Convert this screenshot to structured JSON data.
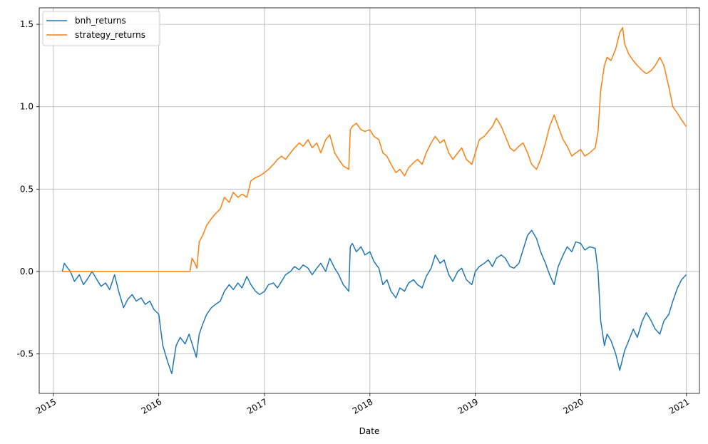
{
  "chart_data": {
    "type": "line",
    "title": "",
    "xlabel": "Date",
    "ylabel": "",
    "xlim": [
      "2014-11-13",
      "2021-02-15"
    ],
    "ylim": [
      -0.74,
      1.6
    ],
    "x_ticks": [
      "2015",
      "2016",
      "2017",
      "2018",
      "2019",
      "2020",
      "2021"
    ],
    "y_ticks": [
      "-0.5",
      "0.0",
      "0.5",
      "1.0",
      "1.5"
    ],
    "grid": true,
    "legend_position": "upper left",
    "series": [
      {
        "name": "bnh_returns",
        "color": "#1f77b4",
        "points": [
          [
            "2015-02-01",
            0.0
          ],
          [
            "2015-02-08",
            0.05
          ],
          [
            "2015-02-20",
            0.02
          ],
          [
            "2015-03-01",
            0.0
          ],
          [
            "2015-03-15",
            -0.06
          ],
          [
            "2015-04-01",
            -0.02
          ],
          [
            "2015-04-15",
            -0.08
          ],
          [
            "2015-05-01",
            -0.04
          ],
          [
            "2015-05-15",
            0.0
          ],
          [
            "2015-06-01",
            -0.05
          ],
          [
            "2015-06-15",
            -0.09
          ],
          [
            "2015-07-01",
            -0.07
          ],
          [
            "2015-07-15",
            -0.11
          ],
          [
            "2015-08-01",
            -0.02
          ],
          [
            "2015-08-15",
            -0.12
          ],
          [
            "2015-09-01",
            -0.22
          ],
          [
            "2015-09-15",
            -0.17
          ],
          [
            "2015-10-01",
            -0.14
          ],
          [
            "2015-10-15",
            -0.18
          ],
          [
            "2015-11-01",
            -0.16
          ],
          [
            "2015-11-15",
            -0.2
          ],
          [
            "2015-12-01",
            -0.18
          ],
          [
            "2015-12-15",
            -0.23
          ],
          [
            "2016-01-01",
            -0.26
          ],
          [
            "2016-01-15",
            -0.45
          ],
          [
            "2016-02-01",
            -0.55
          ],
          [
            "2016-02-15",
            -0.62
          ],
          [
            "2016-03-01",
            -0.45
          ],
          [
            "2016-03-15",
            -0.4
          ],
          [
            "2016-04-01",
            -0.44
          ],
          [
            "2016-04-15",
            -0.38
          ],
          [
            "2016-05-01",
            -0.47
          ],
          [
            "2016-05-10",
            -0.52
          ],
          [
            "2016-05-20",
            -0.38
          ],
          [
            "2016-06-01",
            -0.32
          ],
          [
            "2016-06-15",
            -0.26
          ],
          [
            "2016-07-01",
            -0.22
          ],
          [
            "2016-07-15",
            -0.2
          ],
          [
            "2016-08-01",
            -0.18
          ],
          [
            "2016-08-15",
            -0.12
          ],
          [
            "2016-09-01",
            -0.08
          ],
          [
            "2016-09-15",
            -0.11
          ],
          [
            "2016-10-01",
            -0.07
          ],
          [
            "2016-10-15",
            -0.1
          ],
          [
            "2016-11-01",
            -0.03
          ],
          [
            "2016-11-15",
            -0.08
          ],
          [
            "2016-12-01",
            -0.12
          ],
          [
            "2016-12-15",
            -0.14
          ],
          [
            "2017-01-01",
            -0.12
          ],
          [
            "2017-01-15",
            -0.08
          ],
          [
            "2017-02-01",
            -0.07
          ],
          [
            "2017-02-15",
            -0.1
          ],
          [
            "2017-03-01",
            -0.06
          ],
          [
            "2017-03-15",
            -0.02
          ],
          [
            "2017-04-01",
            0.0
          ],
          [
            "2017-04-15",
            0.03
          ],
          [
            "2017-05-01",
            0.01
          ],
          [
            "2017-05-15",
            0.04
          ],
          [
            "2017-06-01",
            0.02
          ],
          [
            "2017-06-15",
            -0.02
          ],
          [
            "2017-07-01",
            0.02
          ],
          [
            "2017-07-15",
            0.05
          ],
          [
            "2017-08-01",
            0.0
          ],
          [
            "2017-08-15",
            0.08
          ],
          [
            "2017-09-01",
            0.02
          ],
          [
            "2017-09-15",
            -0.02
          ],
          [
            "2017-10-01",
            -0.08
          ],
          [
            "2017-10-20",
            -0.12
          ],
          [
            "2017-10-25",
            0.15
          ],
          [
            "2017-11-01",
            0.17
          ],
          [
            "2017-11-15",
            0.12
          ],
          [
            "2017-12-01",
            0.15
          ],
          [
            "2017-12-15",
            0.1
          ],
          [
            "2018-01-01",
            0.12
          ],
          [
            "2018-01-15",
            0.06
          ],
          [
            "2018-02-01",
            0.02
          ],
          [
            "2018-02-15",
            -0.08
          ],
          [
            "2018-03-01",
            -0.05
          ],
          [
            "2018-03-15",
            -0.12
          ],
          [
            "2018-04-01",
            -0.16
          ],
          [
            "2018-04-15",
            -0.1
          ],
          [
            "2018-05-01",
            -0.12
          ],
          [
            "2018-05-15",
            -0.07
          ],
          [
            "2018-06-01",
            -0.05
          ],
          [
            "2018-06-15",
            -0.08
          ],
          [
            "2018-07-01",
            -0.1
          ],
          [
            "2018-07-15",
            -0.03
          ],
          [
            "2018-08-01",
            0.02
          ],
          [
            "2018-08-15",
            0.1
          ],
          [
            "2018-09-01",
            0.05
          ],
          [
            "2018-09-15",
            0.07
          ],
          [
            "2018-10-01",
            -0.02
          ],
          [
            "2018-10-15",
            -0.06
          ],
          [
            "2018-11-01",
            0.0
          ],
          [
            "2018-11-15",
            0.02
          ],
          [
            "2018-12-01",
            -0.05
          ],
          [
            "2018-12-20",
            -0.08
          ],
          [
            "2019-01-01",
            0.0
          ],
          [
            "2019-01-15",
            0.03
          ],
          [
            "2019-02-01",
            0.05
          ],
          [
            "2019-02-15",
            0.07
          ],
          [
            "2019-03-01",
            0.03
          ],
          [
            "2019-03-15",
            0.08
          ],
          [
            "2019-04-01",
            0.1
          ],
          [
            "2019-04-15",
            0.08
          ],
          [
            "2019-05-01",
            0.03
          ],
          [
            "2019-05-15",
            0.02
          ],
          [
            "2019-06-01",
            0.05
          ],
          [
            "2019-06-15",
            0.13
          ],
          [
            "2019-07-01",
            0.22
          ],
          [
            "2019-07-15",
            0.25
          ],
          [
            "2019-08-01",
            0.2
          ],
          [
            "2019-08-15",
            0.12
          ],
          [
            "2019-09-01",
            0.05
          ],
          [
            "2019-09-15",
            -0.02
          ],
          [
            "2019-10-01",
            -0.08
          ],
          [
            "2019-10-15",
            0.03
          ],
          [
            "2019-11-01",
            0.1
          ],
          [
            "2019-11-15",
            0.15
          ],
          [
            "2019-12-01",
            0.12
          ],
          [
            "2019-12-15",
            0.18
          ],
          [
            "2020-01-01",
            0.17
          ],
          [
            "2020-01-15",
            0.13
          ],
          [
            "2020-02-01",
            0.15
          ],
          [
            "2020-02-20",
            0.14
          ],
          [
            "2020-03-01",
            0.0
          ],
          [
            "2020-03-10",
            -0.3
          ],
          [
            "2020-03-23",
            -0.45
          ],
          [
            "2020-04-01",
            -0.38
          ],
          [
            "2020-04-15",
            -0.42
          ],
          [
            "2020-05-01",
            -0.5
          ],
          [
            "2020-05-15",
            -0.6
          ],
          [
            "2020-06-01",
            -0.48
          ],
          [
            "2020-06-15",
            -0.42
          ],
          [
            "2020-07-01",
            -0.35
          ],
          [
            "2020-07-15",
            -0.4
          ],
          [
            "2020-08-01",
            -0.3
          ],
          [
            "2020-08-15",
            -0.25
          ],
          [
            "2020-09-01",
            -0.3
          ],
          [
            "2020-09-15",
            -0.35
          ],
          [
            "2020-10-01",
            -0.38
          ],
          [
            "2020-10-15",
            -0.3
          ],
          [
            "2020-11-01",
            -0.26
          ],
          [
            "2020-11-15",
            -0.18
          ],
          [
            "2020-12-01",
            -0.1
          ],
          [
            "2020-12-15",
            -0.05
          ],
          [
            "2020-12-31",
            -0.02
          ]
        ]
      },
      {
        "name": "strategy_returns",
        "color": "#ff7f0e",
        "points": [
          [
            "2015-02-01",
            0.0
          ],
          [
            "2016-04-18",
            0.0
          ],
          [
            "2016-04-25",
            0.08
          ],
          [
            "2016-05-05",
            0.05
          ],
          [
            "2016-05-12",
            0.02
          ],
          [
            "2016-05-20",
            0.18
          ],
          [
            "2016-06-01",
            0.22
          ],
          [
            "2016-06-15",
            0.28
          ],
          [
            "2016-07-01",
            0.32
          ],
          [
            "2016-07-15",
            0.35
          ],
          [
            "2016-08-01",
            0.38
          ],
          [
            "2016-08-15",
            0.45
          ],
          [
            "2016-09-01",
            0.42
          ],
          [
            "2016-09-15",
            0.48
          ],
          [
            "2016-10-01",
            0.45
          ],
          [
            "2016-10-15",
            0.47
          ],
          [
            "2016-11-01",
            0.45
          ],
          [
            "2016-11-15",
            0.55
          ],
          [
            "2016-12-01",
            0.57
          ],
          [
            "2016-12-15",
            0.58
          ],
          [
            "2017-01-01",
            0.6
          ],
          [
            "2017-01-15",
            0.62
          ],
          [
            "2017-02-01",
            0.65
          ],
          [
            "2017-02-15",
            0.68
          ],
          [
            "2017-03-01",
            0.7
          ],
          [
            "2017-03-15",
            0.68
          ],
          [
            "2017-04-01",
            0.72
          ],
          [
            "2017-04-15",
            0.75
          ],
          [
            "2017-05-01",
            0.78
          ],
          [
            "2017-05-15",
            0.76
          ],
          [
            "2017-06-01",
            0.8
          ],
          [
            "2017-06-15",
            0.75
          ],
          [
            "2017-07-01",
            0.78
          ],
          [
            "2017-07-15",
            0.72
          ],
          [
            "2017-08-01",
            0.8
          ],
          [
            "2017-08-15",
            0.83
          ],
          [
            "2017-09-01",
            0.72
          ],
          [
            "2017-09-15",
            0.68
          ],
          [
            "2017-10-01",
            0.64
          ],
          [
            "2017-10-20",
            0.62
          ],
          [
            "2017-10-25",
            0.86
          ],
          [
            "2017-11-01",
            0.88
          ],
          [
            "2017-11-15",
            0.9
          ],
          [
            "2017-12-01",
            0.86
          ],
          [
            "2017-12-15",
            0.85
          ],
          [
            "2018-01-01",
            0.86
          ],
          [
            "2018-01-15",
            0.82
          ],
          [
            "2018-02-01",
            0.8
          ],
          [
            "2018-02-15",
            0.72
          ],
          [
            "2018-03-01",
            0.7
          ],
          [
            "2018-03-15",
            0.65
          ],
          [
            "2018-04-01",
            0.6
          ],
          [
            "2018-04-15",
            0.62
          ],
          [
            "2018-05-01",
            0.58
          ],
          [
            "2018-05-15",
            0.63
          ],
          [
            "2018-06-01",
            0.66
          ],
          [
            "2018-06-15",
            0.68
          ],
          [
            "2018-07-01",
            0.65
          ],
          [
            "2018-07-15",
            0.72
          ],
          [
            "2018-08-01",
            0.78
          ],
          [
            "2018-08-15",
            0.82
          ],
          [
            "2018-09-01",
            0.78
          ],
          [
            "2018-09-15",
            0.8
          ],
          [
            "2018-10-01",
            0.72
          ],
          [
            "2018-10-15",
            0.68
          ],
          [
            "2018-11-01",
            0.72
          ],
          [
            "2018-11-15",
            0.75
          ],
          [
            "2018-12-01",
            0.68
          ],
          [
            "2018-12-20",
            0.65
          ],
          [
            "2019-01-01",
            0.72
          ],
          [
            "2019-01-15",
            0.8
          ],
          [
            "2019-02-01",
            0.82
          ],
          [
            "2019-02-15",
            0.85
          ],
          [
            "2019-03-01",
            0.88
          ],
          [
            "2019-03-15",
            0.93
          ],
          [
            "2019-04-01",
            0.88
          ],
          [
            "2019-04-15",
            0.82
          ],
          [
            "2019-05-01",
            0.75
          ],
          [
            "2019-05-15",
            0.73
          ],
          [
            "2019-06-01",
            0.76
          ],
          [
            "2019-06-15",
            0.78
          ],
          [
            "2019-07-01",
            0.72
          ],
          [
            "2019-07-15",
            0.65
          ],
          [
            "2019-08-01",
            0.62
          ],
          [
            "2019-08-15",
            0.68
          ],
          [
            "2019-09-01",
            0.78
          ],
          [
            "2019-09-15",
            0.88
          ],
          [
            "2019-10-01",
            0.95
          ],
          [
            "2019-10-15",
            0.88
          ],
          [
            "2019-11-01",
            0.8
          ],
          [
            "2019-11-15",
            0.76
          ],
          [
            "2019-12-01",
            0.7
          ],
          [
            "2019-12-15",
            0.72
          ],
          [
            "2020-01-01",
            0.74
          ],
          [
            "2020-01-15",
            0.7
          ],
          [
            "2020-02-01",
            0.72
          ],
          [
            "2020-02-20",
            0.75
          ],
          [
            "2020-03-01",
            0.85
          ],
          [
            "2020-03-10",
            1.1
          ],
          [
            "2020-03-23",
            1.25
          ],
          [
            "2020-04-01",
            1.3
          ],
          [
            "2020-04-15",
            1.28
          ],
          [
            "2020-05-01",
            1.35
          ],
          [
            "2020-05-15",
            1.45
          ],
          [
            "2020-05-25",
            1.48
          ],
          [
            "2020-06-01",
            1.38
          ],
          [
            "2020-06-15",
            1.32
          ],
          [
            "2020-07-01",
            1.28
          ],
          [
            "2020-07-15",
            1.25
          ],
          [
            "2020-08-01",
            1.22
          ],
          [
            "2020-08-15",
            1.2
          ],
          [
            "2020-09-01",
            1.22
          ],
          [
            "2020-09-15",
            1.25
          ],
          [
            "2020-10-01",
            1.3
          ],
          [
            "2020-10-15",
            1.25
          ],
          [
            "2020-11-01",
            1.12
          ],
          [
            "2020-11-15",
            1.0
          ],
          [
            "2020-12-01",
            0.96
          ],
          [
            "2020-12-15",
            0.92
          ],
          [
            "2020-12-31",
            0.88
          ]
        ]
      }
    ]
  }
}
